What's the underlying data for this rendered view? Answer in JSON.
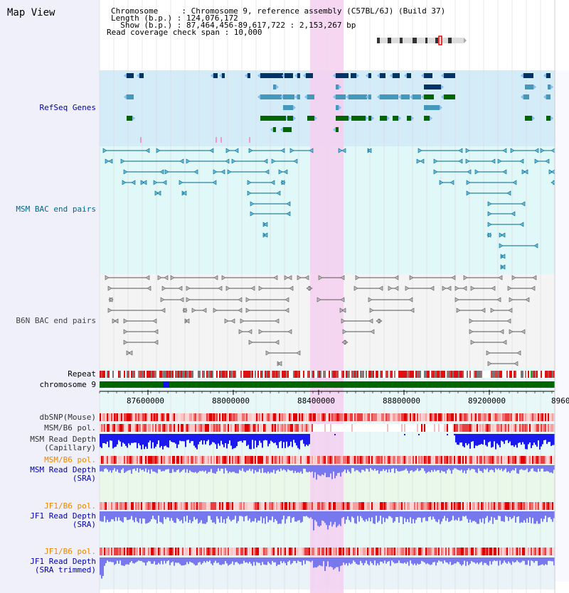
{
  "header": {
    "title": "Map View",
    "info_lines": [
      "Chromosome     : Chromosome 9, reference assembly (C57BL/6J) (Build 37)",
      "Length (b.p.) : 124,076,172",
      "  Show (b.p.) : 87,464,456-89,617,722 : 2,153,267 bp",
      "Read coverage check span : 10,000"
    ]
  },
  "tracks": {
    "refseq": {
      "label": "RefSeq Genes",
      "color": "#0000aa"
    },
    "msm_bac": {
      "label": "MSM BAC end pairs",
      "color": "#006688"
    },
    "b6n_bac": {
      "label": "B6N BAC end pairs",
      "color": "#444444"
    },
    "repeat": {
      "label": "Repeat"
    },
    "chromosome": {
      "label": "chromosome 9"
    },
    "dbsnp": {
      "label": "dbSNP(Mouse)"
    },
    "msm_b6_pol": {
      "label": "MSM/B6 pol."
    },
    "msm_depth_cap": {
      "label": "MSM Read Depth\n(Capillary)"
    },
    "msm_b6_pol_sra": {
      "label": "MSM/B6 pol.",
      "color": "#ee8800"
    },
    "msm_depth_sra": {
      "label": "MSM Read Depth\n(SRA)",
      "color": "#0000aa"
    },
    "jf1_b6_pol": {
      "label": "JF1/B6 pol.",
      "color": "#ee8800"
    },
    "jf1_depth_sra": {
      "label": "JF1 Read Depth\n(SRA)",
      "color": "#0000aa"
    },
    "jf1_b6_pol_trim": {
      "label": "JF1/B6 pol.",
      "color": "#ee8800"
    },
    "jf1_depth_trim": {
      "label": "JF1 Read Depth\n(SRA trimmed)",
      "color": "#0000aa"
    }
  },
  "axis": {
    "ticks": [
      "87600000",
      "88000000",
      "88400000",
      "88800000",
      "89200000",
      "8960"
    ]
  },
  "colors": {
    "highlight": "#f5d0f0",
    "refseq_bg": "#d4ecf8",
    "bac_bg": "#e0f8f8",
    "gene_dark": "#003366",
    "gene_mid": "#4499bb",
    "gene_green": "#006600",
    "depth_blue": "#1a1aee",
    "depth_light": "#7777ee"
  }
}
